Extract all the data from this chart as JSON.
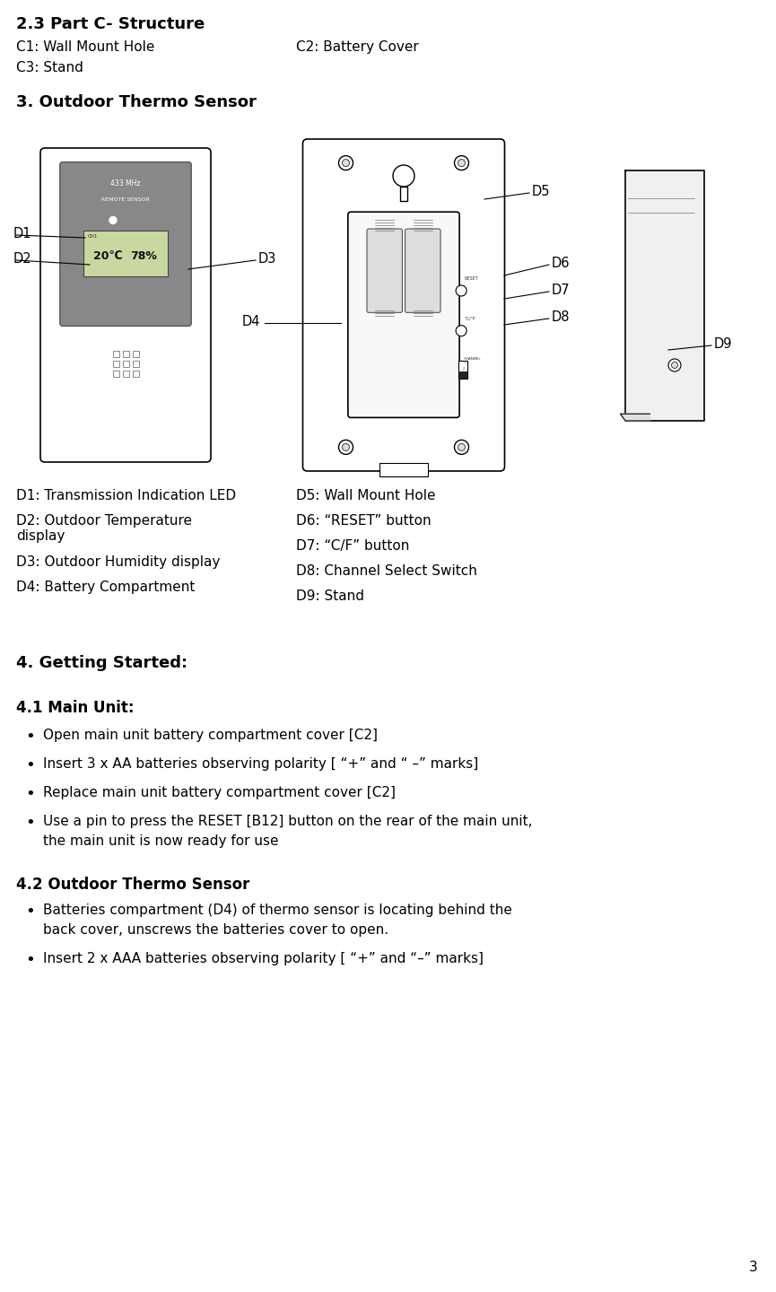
{
  "title_23": "2.3 Part C- Structure",
  "c1": "C1: Wall Mount Hole",
  "c2": "C2: Battery Cover",
  "c3": "C3: Stand",
  "section3": "3. Outdoor Thermo Sensor",
  "d_labels_left": [
    "D1: Transmission Indication LED",
    "D2: Outdoor Temperature\ndisplay",
    "D3: Outdoor Humidity display",
    "D4: Battery Compartment"
  ],
  "d_labels_right": [
    "D5: Wall Mount Hole",
    "D6: “RESET” button",
    "D7: “C/F” button",
    "D8: Channel Select Switch",
    "D9: Stand"
  ],
  "section4": "4. Getting Started:",
  "s41_title": "4.1 Main Unit:",
  "s41_bullets": [
    "Open main unit battery compartment cover [C2]",
    "Insert 3 x AA batteries observing polarity [ “+” and “ –” marks]",
    "Replace main unit battery compartment cover [C2]",
    "Use a pin to press the RESET [B12] button on the rear of the main unit,\nthe main unit is now ready for use"
  ],
  "s42_title": "4.2 Outdoor Thermo Sensor",
  "s42_bullets": [
    "Batteries compartment (D4) of thermo sensor is locating behind the\nback cover, unscrews the batteries cover to open.",
    "Insert 2 x AAA batteries observing polarity [ “+” and “–” marks]"
  ],
  "page_number": "3",
  "bg_color": "#ffffff",
  "text_color": "#000000",
  "font_family": "DejaVu Sans"
}
